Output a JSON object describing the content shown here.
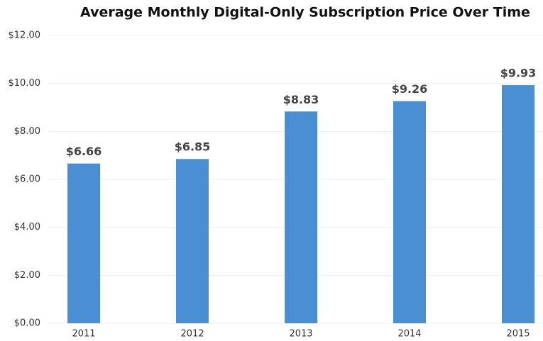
{
  "chart_data": {
    "type": "bar",
    "title": "Average Monthly Digital-Only Subscription Price Over Time",
    "categories": [
      "2011",
      "2012",
      "2013",
      "2014",
      "2015"
    ],
    "values": [
      6.66,
      6.85,
      8.83,
      9.26,
      9.93
    ],
    "value_labels": [
      "$6.66",
      "$6.85",
      "$8.83",
      "$9.26",
      "$9.93"
    ],
    "color": "#4a8fd4",
    "ylim": [
      0,
      12
    ],
    "yticks": [
      {
        "value": 0,
        "label": "$0.00"
      },
      {
        "value": 2,
        "label": "$2.00"
      },
      {
        "value": 4,
        "label": "$4.00"
      },
      {
        "value": 6,
        "label": "$6.00"
      },
      {
        "value": 8,
        "label": "$8.00"
      },
      {
        "value": 10,
        "label": "$10.00"
      },
      {
        "value": 12,
        "label": "$12.00"
      }
    ],
    "grid": true
  }
}
